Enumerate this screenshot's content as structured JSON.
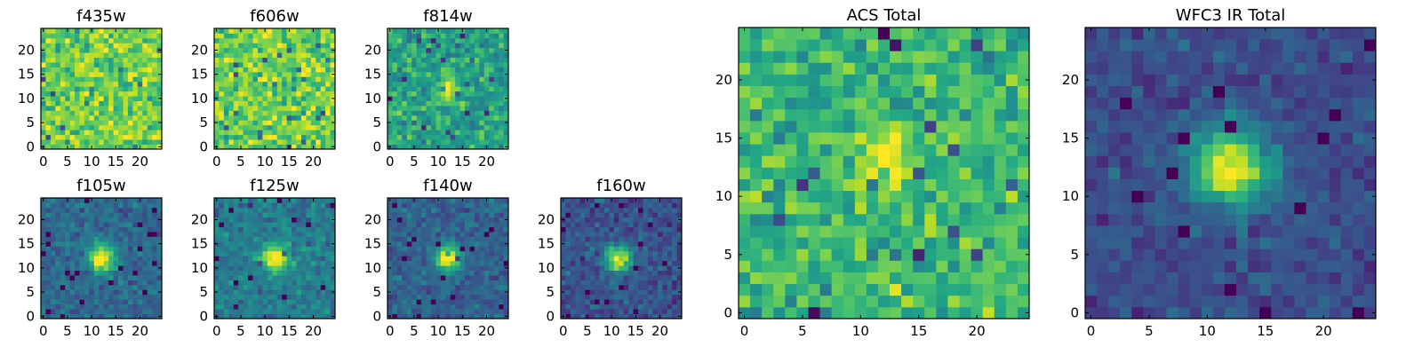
{
  "chart_data": [
    {
      "id": "f435w",
      "type": "heatmap",
      "title": "f435w",
      "xlim": [
        0,
        25
      ],
      "ylim": [
        0,
        25
      ],
      "grid": 25,
      "xticks": [
        0,
        5,
        10,
        15,
        20
      ],
      "yticks": [
        0,
        5,
        10,
        15,
        20
      ],
      "colormap": "viridis",
      "pattern": "flat noise",
      "peak": [
        12,
        12
      ],
      "sigma": 3.0,
      "peak_amp": 0.0,
      "background": 0.78,
      "noise": 0.16,
      "seed": 11
    },
    {
      "id": "f606w",
      "type": "heatmap",
      "title": "f606w",
      "xlim": [
        0,
        25
      ],
      "ylim": [
        0,
        25
      ],
      "grid": 25,
      "xticks": [
        0,
        5,
        10,
        15,
        20
      ],
      "yticks": [
        0,
        5,
        10,
        15,
        20
      ],
      "colormap": "viridis",
      "pattern": "flat noise",
      "peak": [
        12,
        12
      ],
      "sigma": 3.0,
      "peak_amp": 0.0,
      "background": 0.78,
      "noise": 0.16,
      "seed": 23
    },
    {
      "id": "f814w",
      "type": "heatmap",
      "title": "f814w",
      "xlim": [
        0,
        25
      ],
      "ylim": [
        0,
        25
      ],
      "grid": 25,
      "xticks": [
        0,
        5,
        10,
        15,
        20
      ],
      "yticks": [
        0,
        5,
        10,
        15,
        20
      ],
      "colormap": "viridis",
      "pattern": "noise with faint central source",
      "peak": [
        12,
        12
      ],
      "sigma": 1.6,
      "peak_amp": 0.4,
      "background": 0.58,
      "noise": 0.14,
      "seed": 37
    },
    {
      "id": "f105w",
      "type": "heatmap",
      "title": "f105w",
      "xlim": [
        0,
        25
      ],
      "ylim": [
        0,
        25
      ],
      "grid": 25,
      "xticks": [
        0,
        5,
        10,
        15,
        20
      ],
      "yticks": [
        0,
        5,
        10,
        15,
        20
      ],
      "colormap": "viridis",
      "pattern": "central source",
      "peak": [
        12,
        12
      ],
      "sigma": 2.0,
      "peak_amp": 0.68,
      "background": 0.34,
      "noise": 0.09,
      "seed": 41
    },
    {
      "id": "f125w",
      "type": "heatmap",
      "title": "f125w",
      "xlim": [
        0,
        25
      ],
      "ylim": [
        0,
        25
      ],
      "grid": 25,
      "xticks": [
        0,
        5,
        10,
        15,
        20
      ],
      "yticks": [
        0,
        5,
        10,
        15,
        20
      ],
      "colormap": "viridis",
      "pattern": "central source",
      "peak": [
        12,
        12
      ],
      "sigma": 2.0,
      "peak_amp": 0.6,
      "background": 0.42,
      "noise": 0.1,
      "seed": 53
    },
    {
      "id": "f140w",
      "type": "heatmap",
      "title": "f140w",
      "xlim": [
        0,
        25
      ],
      "ylim": [
        0,
        25
      ],
      "grid": 25,
      "xticks": [
        0,
        5,
        10,
        15,
        20
      ],
      "yticks": [
        0,
        5,
        10,
        15,
        20
      ],
      "colormap": "viridis",
      "pattern": "central source",
      "peak": [
        12,
        12
      ],
      "sigma": 1.9,
      "peak_amp": 0.7,
      "background": 0.32,
      "noise": 0.09,
      "seed": 67
    },
    {
      "id": "f160w",
      "type": "heatmap",
      "title": "f160w",
      "xlim": [
        0,
        25
      ],
      "ylim": [
        0,
        25
      ],
      "grid": 25,
      "xticks": [
        0,
        5,
        10,
        15,
        20
      ],
      "yticks": [
        0,
        5,
        10,
        15,
        20
      ],
      "colormap": "viridis",
      "pattern": "central source",
      "peak": [
        11.5,
        12
      ],
      "sigma": 1.9,
      "peak_amp": 0.7,
      "background": 0.26,
      "noise": 0.1,
      "seed": 79
    },
    {
      "id": "acs_total",
      "type": "heatmap",
      "title": "ACS Total",
      "xlim": [
        0,
        25
      ],
      "ylim": [
        0,
        25
      ],
      "grid": 25,
      "xticks": [
        0,
        5,
        10,
        15,
        20
      ],
      "yticks": [
        0,
        5,
        10,
        15,
        20
      ],
      "colormap": "viridis",
      "pattern": "noise with faint central source",
      "peak": [
        12,
        13
      ],
      "sigma": 1.8,
      "peak_amp": 0.3,
      "background": 0.66,
      "noise": 0.15,
      "seed": 97
    },
    {
      "id": "wfc3_ir_total",
      "type": "heatmap",
      "title": "WFC3 IR Total",
      "xlim": [
        0,
        25
      ],
      "ylim": [
        0,
        25
      ],
      "grid": 25,
      "xticks": [
        0,
        5,
        10,
        15,
        20
      ],
      "yticks": [
        0,
        5,
        10,
        15,
        20
      ],
      "colormap": "viridis",
      "pattern": "central source",
      "peak": [
        12,
        12.5
      ],
      "sigma": 2.3,
      "peak_amp": 0.78,
      "background": 0.24,
      "noise": 0.08,
      "seed": 113
    }
  ]
}
